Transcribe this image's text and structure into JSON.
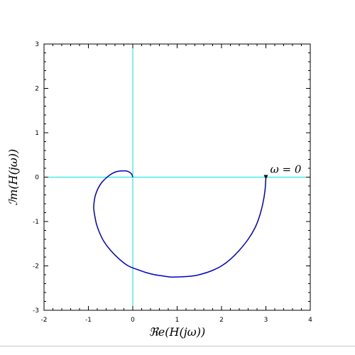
{
  "chart_data": {
    "type": "line",
    "title": "",
    "xlabel": "ℜe(H(jω))",
    "ylabel": "ℐm(H(jω))",
    "xlim": [
      -2,
      4
    ],
    "ylim": [
      -3,
      3
    ],
    "xticks": [
      "-2",
      "-1",
      "0",
      "1",
      "2",
      "3",
      "4"
    ],
    "yticks": [
      "-3",
      "-2",
      "-1",
      "0",
      "1",
      "2",
      "3"
    ],
    "grid": false,
    "reference_lines": {
      "x": 0,
      "y": 0,
      "color": "#00e5e5"
    },
    "series": [
      {
        "color": "#0000c8",
        "x": [
          3.0,
          2.98,
          2.93,
          2.85,
          2.75,
          2.6,
          2.4,
          2.2,
          2.0,
          1.8,
          1.6,
          1.4,
          1.2,
          1.0,
          0.85,
          0.7,
          0.5,
          0.3,
          0.1,
          -0.1,
          -0.3,
          -0.5,
          -0.65,
          -0.75,
          -0.82,
          -0.86,
          -0.88,
          -0.87,
          -0.84,
          -0.78,
          -0.7,
          -0.6,
          -0.5,
          -0.38,
          -0.25,
          -0.15,
          -0.07,
          -0.02,
          0.0
        ],
        "y": [
          0.0,
          -0.3,
          -0.6,
          -0.9,
          -1.15,
          -1.4,
          -1.65,
          -1.85,
          -2.0,
          -2.1,
          -2.17,
          -2.22,
          -2.24,
          -2.25,
          -2.25,
          -2.23,
          -2.2,
          -2.15,
          -2.08,
          -2.0,
          -1.85,
          -1.65,
          -1.45,
          -1.25,
          -1.05,
          -0.85,
          -0.7,
          -0.55,
          -0.4,
          -0.25,
          -0.12,
          -0.02,
          0.06,
          0.12,
          0.14,
          0.14,
          0.11,
          0.06,
          0.0
        ]
      }
    ],
    "marker": {
      "x": 3.0,
      "y": 0.0,
      "shape": "triangle-down",
      "color": "#000000"
    },
    "annotations": [
      {
        "text": "ω = 0",
        "x": 3.0,
        "y": 0.0
      }
    ]
  }
}
